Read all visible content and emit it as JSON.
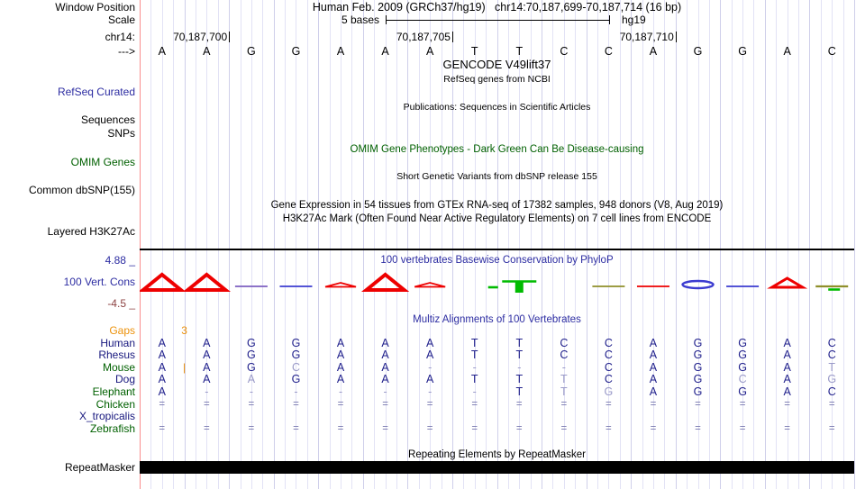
{
  "header": {
    "window_position_label": "Window Position",
    "title": "Human Feb. 2009 (GRCh37/hg19)   chr14:70,187,699-70,187,714 (16 bp)",
    "scale_label": "Scale",
    "scale_value": "5 bases",
    "assembly": "hg19",
    "chrom_label": "chr14:",
    "strand_label": "--->",
    "ruler_ticks": [
      "70,187,700",
      "70,187,705",
      "70,187,710"
    ],
    "sequence": [
      "A",
      "A",
      "G",
      "G",
      "A",
      "A",
      "A",
      "T",
      "T",
      "C",
      "C",
      "A",
      "G",
      "G",
      "A",
      "C"
    ]
  },
  "tracks": {
    "gencode_title": "GENCODE V49lift37",
    "refseq_subtitle": "RefSeq genes from NCBI",
    "refseq_label": "RefSeq Curated",
    "publications_title": "Publications: Sequences in Scientific Articles",
    "sequences_label": "Sequences",
    "snps_label": "SNPs",
    "omim_title": "OMIM Gene Phenotypes - Dark Green Can Be Disease-causing",
    "omim_label": "OMIM Genes",
    "dbsnp_title": "Short Genetic Variants from dbSNP release 155",
    "dbsnp_label": "Common dbSNP(155)",
    "gtex_title": "Gene Expression in 54 tissues from GTEx RNA-seq of 17382 samples, 948 donors (V8, Aug 2019)",
    "h3k27ac_title": "H3K27Ac Mark (Often Found Near Active Regulatory Elements) on 7 cell lines from ENCODE",
    "h3k27ac_label": "Layered H3K27Ac"
  },
  "conservation": {
    "title": "100 vertebrates Basewise Conservation by PhyloP",
    "label": "100 Vert. Cons",
    "axis_max": "4.88 _",
    "axis_min": "-4.5 _",
    "shapes": [
      {
        "type": "peak-tall",
        "color": "red"
      },
      {
        "type": "peak-tall",
        "color": "red"
      },
      {
        "type": "line",
        "color": "purple"
      },
      {
        "type": "line",
        "color": "blue"
      },
      {
        "type": "peak-small",
        "color": "red"
      },
      {
        "type": "peak-tall",
        "color": "red"
      },
      {
        "type": "peak-small",
        "color": "red"
      },
      {
        "type": "dash-right",
        "color": "green"
      },
      {
        "type": "tbar-down",
        "color": "green"
      },
      {
        "type": "none",
        "color": "none"
      },
      {
        "type": "line",
        "color": "olive"
      },
      {
        "type": "line",
        "color": "red"
      },
      {
        "type": "lens",
        "color": "blue"
      },
      {
        "type": "line",
        "color": "blue"
      },
      {
        "type": "peak-med",
        "color": "red"
      },
      {
        "type": "line-dash",
        "color": "olive",
        "color2": "green"
      }
    ]
  },
  "alignment": {
    "title": "Multiz Alignments of 100 Vertebrates",
    "gaps": {
      "label": "Gaps",
      "count": "3",
      "boundary": 1
    },
    "rows": [
      {
        "label": "Human",
        "label_color": "navy",
        "cells": [
          "A",
          "A",
          "G",
          "G",
          "A",
          "A",
          "A",
          "T",
          "T",
          "C",
          "C",
          "A",
          "G",
          "G",
          "A",
          "C"
        ],
        "gray": []
      },
      {
        "label": "Rhesus",
        "label_color": "navy",
        "cells": [
          "A",
          "A",
          "G",
          "G",
          "A",
          "A",
          "A",
          "T",
          "T",
          "C",
          "C",
          "A",
          "G",
          "G",
          "A",
          "C"
        ],
        "gray": []
      },
      {
        "label": "Mouse",
        "label_color": "green",
        "cells": [
          "A",
          "A",
          "G",
          "C",
          "A",
          "A",
          "-",
          "-",
          "-",
          "-",
          "C",
          "A",
          "G",
          "G",
          "A",
          "T"
        ],
        "gray": [
          3,
          6,
          7,
          8,
          9,
          15
        ],
        "insert_after": 0
      },
      {
        "label": "Dog",
        "label_color": "navy",
        "cells": [
          "A",
          "A",
          "A",
          "G",
          "A",
          "A",
          "A",
          "T",
          "T",
          "T",
          "C",
          "A",
          "G",
          "C",
          "A",
          "G"
        ],
        "gray": [
          2,
          9,
          13,
          15
        ]
      },
      {
        "label": "Elephant",
        "label_color": "green",
        "cells": [
          "A",
          "-",
          "-",
          "-",
          "-",
          "-",
          "-",
          "-",
          "T",
          "T",
          "G",
          "A",
          "G",
          "G",
          "A",
          "C"
        ],
        "gray": [
          1,
          2,
          3,
          4,
          5,
          6,
          7,
          9,
          10
        ]
      },
      {
        "label": "Chicken",
        "label_color": "green",
        "cells": [
          "=",
          "=",
          "=",
          "=",
          "=",
          "=",
          "=",
          "=",
          "=",
          "=",
          "=",
          "=",
          "=",
          "=",
          "=",
          "="
        ],
        "gray": []
      },
      {
        "label": "X_tropicalis",
        "label_color": "navy",
        "cells": [
          "",
          "",
          "",
          "",
          "",
          "",
          "",
          "",
          "",
          "",
          "",
          "",
          "",
          "",
          "",
          ""
        ],
        "gray": []
      },
      {
        "label": "Zebrafish",
        "label_color": "green",
        "cells": [
          "=",
          "=",
          "=",
          "=",
          "=",
          "=",
          "=",
          "=",
          "=",
          "=",
          "=",
          "=",
          "=",
          "=",
          "=",
          "="
        ],
        "gray": []
      }
    ]
  },
  "repeat": {
    "title": "Repeating Elements by RepeatMasker",
    "label": "RepeatMasker"
  },
  "colors": {
    "wiggle_red": "#ee0000",
    "wiggle_green": "#00bb00",
    "wiggle_blue": "#3b3bd0",
    "wiggle_olive": "#8f8f2a",
    "wiggle_purple": "#7d5fc0",
    "letter_navy": "#21218c",
    "letter_gray": "#9a9ac8",
    "label_green": "#006000",
    "label_orange": "#ec920c",
    "link_blue": "#2d2da2",
    "axis_min_maroon": "#8d4343",
    "guideline_pink": "#fa8e8e"
  }
}
